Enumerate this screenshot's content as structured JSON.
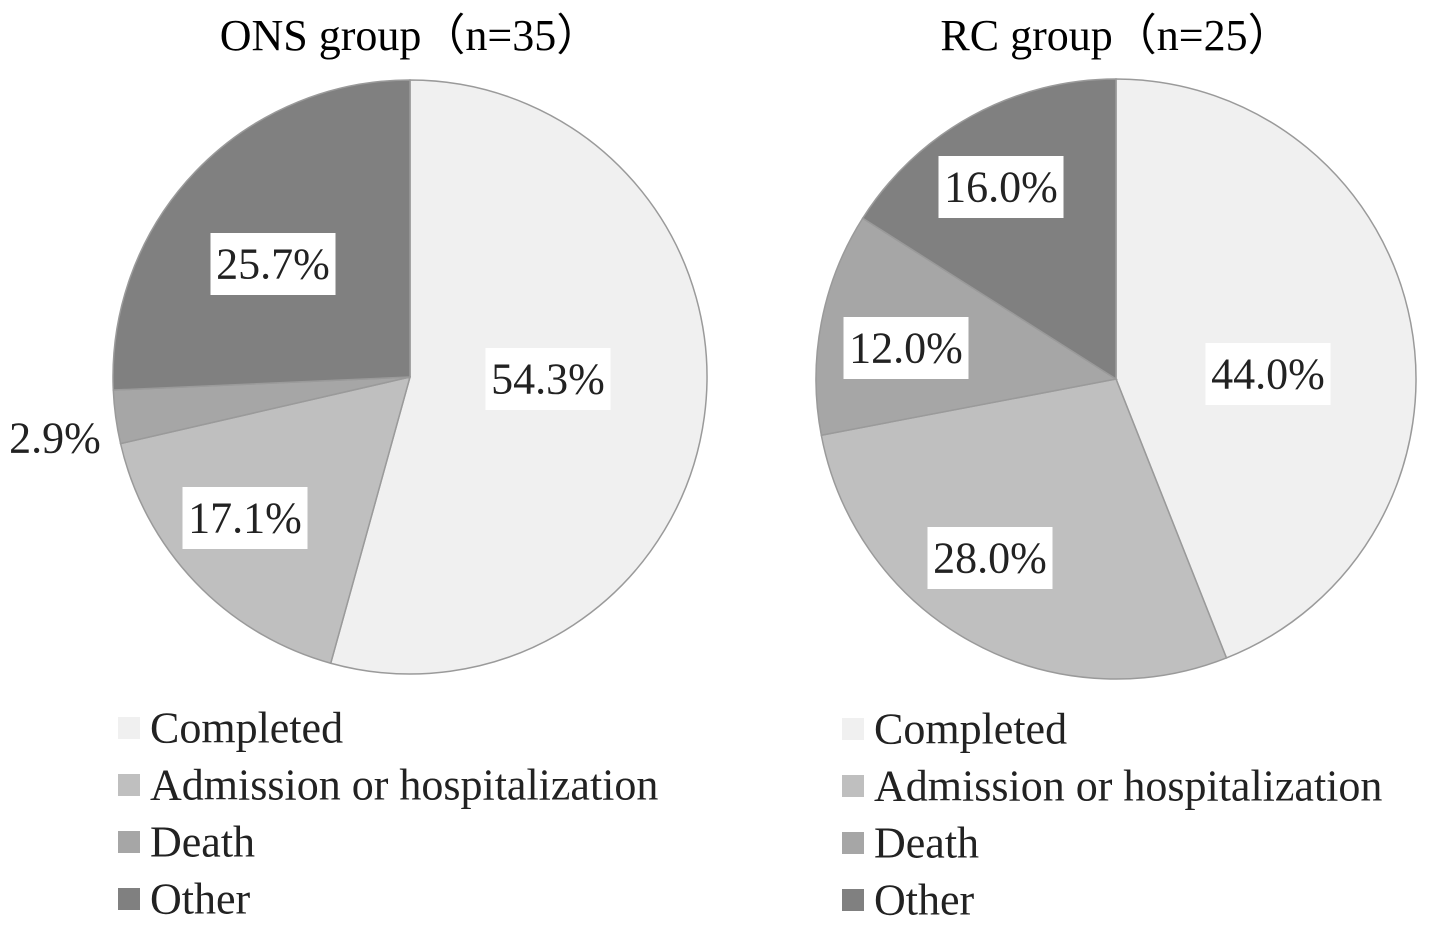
{
  "chart_data": [
    {
      "type": "pie",
      "title": "ONS group（n=35）",
      "categories": [
        "Completed",
        "Admission or hospitalization",
        "Death",
        "Other"
      ],
      "values": [
        54.3,
        17.1,
        2.9,
        25.7
      ],
      "value_labels": [
        "54.3%",
        "17.1%",
        "2.9%",
        "25.7%"
      ],
      "colors": [
        "#f0f0f0",
        "#bfbfbf",
        "#a6a6a6",
        "#808080"
      ],
      "legend_position": "bottom"
    },
    {
      "type": "pie",
      "title": "RC group（n=25）",
      "categories": [
        "Completed",
        "Admission or hospitalization",
        "Death",
        "Other"
      ],
      "values": [
        44.0,
        28.0,
        12.0,
        16.0
      ],
      "value_labels": [
        "44.0%",
        "28.0%",
        "12.0%",
        "16.0%"
      ],
      "colors": [
        "#f0f0f0",
        "#bfbfbf",
        "#a6a6a6",
        "#808080"
      ],
      "legend_position": "bottom"
    }
  ]
}
